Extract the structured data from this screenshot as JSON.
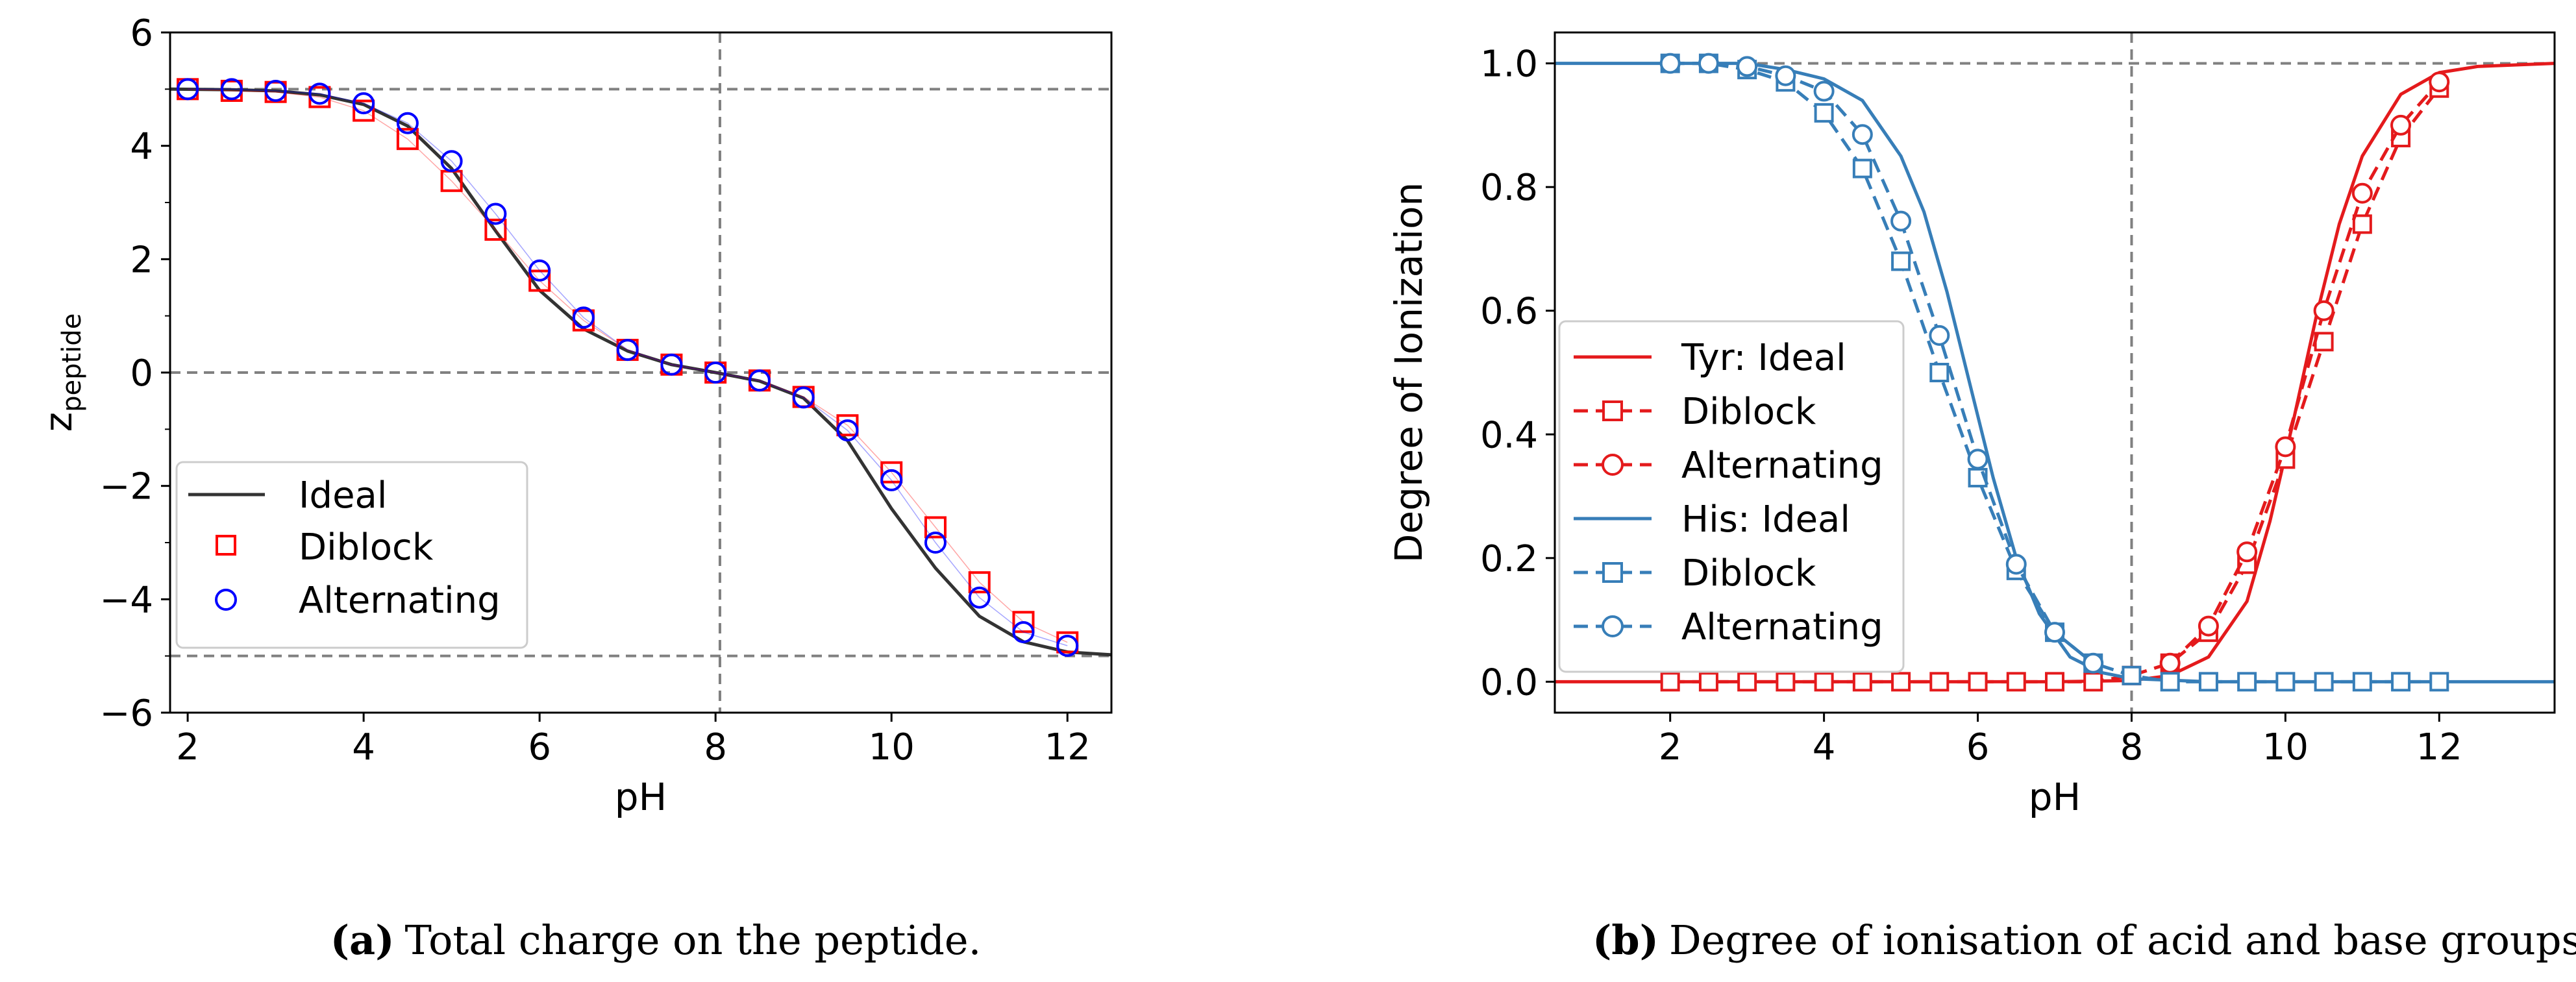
{
  "chart_data": [
    {
      "type": "line",
      "id": "a",
      "xlabel": "pH",
      "ylabel_main": "z",
      "ylabel_sub": "peptide",
      "xlim": [
        1.8,
        12.5
      ],
      "ylim": [
        -6,
        6
      ],
      "xticks": [
        2,
        4,
        6,
        8,
        10,
        12
      ],
      "yticks": [
        -6,
        -4,
        -2,
        0,
        2,
        4,
        6
      ],
      "xtick_labels": [
        "2",
        "4",
        "6",
        "8",
        "10",
        "12"
      ],
      "ytick_labels": [
        "−6",
        "−4",
        "−2",
        "0",
        "2",
        "4",
        "6"
      ],
      "reference_lines": {
        "vertical_x": 8.05,
        "horizontal_y": [
          5,
          0,
          -5
        ]
      },
      "legend": [
        "Ideal",
        "Diblock",
        "Alternating"
      ],
      "series": [
        {
          "name": "Ideal",
          "style": "line",
          "color": "#333333",
          "x": [
            1.8,
            2.5,
            3,
            3.5,
            4,
            4.5,
            5,
            5.5,
            6,
            6.5,
            7,
            7.5,
            8,
            8.5,
            9,
            9.5,
            10,
            10.5,
            11,
            11.5,
            12,
            12.5
          ],
          "y": [
            5.0,
            4.99,
            4.97,
            4.9,
            4.73,
            4.35,
            3.6,
            2.5,
            1.45,
            0.77,
            0.38,
            0.14,
            0.0,
            -0.15,
            -0.45,
            -1.2,
            -2.4,
            -3.45,
            -4.3,
            -4.75,
            -4.93,
            -4.98
          ]
        },
        {
          "name": "Diblock",
          "style": "square",
          "color": "#ff0000",
          "x": [
            2,
            2.5,
            3,
            3.5,
            4,
            4.5,
            5,
            5.5,
            6,
            6.5,
            7,
            7.5,
            8,
            8.5,
            9,
            9.5,
            10,
            10.5,
            11,
            11.5,
            12
          ],
          "y": [
            5.0,
            4.97,
            4.95,
            4.86,
            4.62,
            4.12,
            3.38,
            2.52,
            1.62,
            0.92,
            0.4,
            0.14,
            0.0,
            -0.14,
            -0.43,
            -0.93,
            -1.76,
            -2.73,
            -3.7,
            -4.4,
            -4.76
          ]
        },
        {
          "name": "Alternating",
          "style": "circle",
          "color": "#0000ff",
          "x": [
            2,
            2.5,
            3,
            3.5,
            4,
            4.5,
            5,
            5.5,
            6,
            6.5,
            7,
            7.5,
            8,
            8.5,
            9,
            9.5,
            10,
            10.5,
            11,
            11.5,
            12
          ],
          "y": [
            5.0,
            5.0,
            4.97,
            4.92,
            4.75,
            4.4,
            3.73,
            2.8,
            1.8,
            0.97,
            0.4,
            0.14,
            0.0,
            -0.14,
            -0.44,
            -1.02,
            -1.9,
            -3.0,
            -3.97,
            -4.58,
            -4.82
          ]
        }
      ]
    },
    {
      "type": "line",
      "id": "b",
      "xlabel": "pH",
      "ylabel": "Degree of Ionization",
      "xlim": [
        0.5,
        13.5
      ],
      "ylim": [
        -0.05,
        1.05
      ],
      "xticks": [
        2,
        4,
        6,
        8,
        10,
        12
      ],
      "yticks": [
        0.0,
        0.2,
        0.4,
        0.6,
        0.8,
        1.0
      ],
      "xtick_labels": [
        "2",
        "4",
        "6",
        "8",
        "10",
        "12"
      ],
      "ytick_labels": [
        "0.0",
        "0.2",
        "0.4",
        "0.6",
        "0.8",
        "1.0"
      ],
      "reference_lines": {
        "vertical_x": 8.0,
        "horizontal_y": [
          1.0
        ]
      },
      "legend": [
        "Tyr: Ideal",
        "Diblock",
        "Alternating",
        "His: Ideal",
        "Diblock",
        "Alternating"
      ],
      "series": [
        {
          "name": "Tyr: Ideal",
          "style": "line",
          "color": "#e41a1c",
          "x": [
            0.5,
            7,
            8,
            8.5,
            9,
            9.5,
            9.8,
            10.1,
            10.4,
            10.7,
            11,
            11.5,
            12,
            12.5,
            13.5
          ],
          "y": [
            0.0,
            0.0,
            0.002,
            0.01,
            0.04,
            0.13,
            0.26,
            0.42,
            0.59,
            0.74,
            0.85,
            0.95,
            0.985,
            0.995,
            1.0
          ]
        },
        {
          "name": "Diblock",
          "style": "dashed-square",
          "color": "#e41a1c",
          "x": [
            2,
            2.5,
            3,
            3.5,
            4,
            4.5,
            5,
            5.5,
            6,
            6.5,
            7,
            7.5,
            8,
            8.5,
            9,
            9.5,
            10,
            10.5,
            11,
            11.5,
            12
          ],
          "y": [
            0,
            0,
            0,
            0,
            0,
            0,
            0,
            0,
            0,
            0,
            0,
            0.0,
            0.01,
            0.03,
            0.08,
            0.19,
            0.36,
            0.55,
            0.74,
            0.88,
            0.96
          ]
        },
        {
          "name": "Alternating",
          "style": "dashed-circle",
          "color": "#e41a1c",
          "x": [
            8.5,
            9,
            9.5,
            10,
            10.5,
            11,
            11.5,
            12
          ],
          "y": [
            0.03,
            0.09,
            0.21,
            0.38,
            0.6,
            0.79,
            0.9,
            0.97
          ]
        },
        {
          "name": "His: Ideal",
          "style": "line",
          "color": "#377eb8",
          "x": [
            0.5,
            3,
            3.5,
            4,
            4.5,
            5,
            5.3,
            5.6,
            5.9,
            6.2,
            6.5,
            6.8,
            7.2,
            7.6,
            8,
            9,
            13.5
          ],
          "y": [
            1.0,
            1.0,
            0.99,
            0.975,
            0.94,
            0.85,
            0.76,
            0.63,
            0.48,
            0.33,
            0.2,
            0.11,
            0.04,
            0.015,
            0.005,
            0.0,
            0.0
          ]
        },
        {
          "name": "Diblock",
          "style": "dashed-square",
          "color": "#377eb8",
          "x": [
            2,
            2.5,
            3,
            3.5,
            4,
            4.5,
            5,
            5.5,
            6,
            6.5,
            7,
            7.5,
            8,
            8.5,
            9,
            9.5,
            10,
            10.5,
            11,
            11.5,
            12
          ],
          "y": [
            1.0,
            1.0,
            0.99,
            0.97,
            0.92,
            0.83,
            0.68,
            0.5,
            0.33,
            0.18,
            0.08,
            0.03,
            0.01,
            0,
            0,
            0,
            0,
            0,
            0,
            0,
            0
          ]
        },
        {
          "name": "Alternating",
          "style": "dashed-circle",
          "color": "#377eb8",
          "x": [
            2,
            2.5,
            3,
            3.5,
            4,
            4.5,
            5,
            5.5,
            6,
            6.5,
            7,
            7.5
          ],
          "y": [
            1.0,
            1.0,
            0.995,
            0.98,
            0.955,
            0.885,
            0.745,
            0.56,
            0.36,
            0.19,
            0.08,
            0.03
          ]
        }
      ]
    }
  ],
  "captions": [
    {
      "label": "(a)",
      "text": "Total charge on the peptide."
    },
    {
      "label": "(b)",
      "text": "Degree of ionisation of acid and base groups."
    }
  ],
  "colors": {
    "grid_ref": "#808080",
    "axis": "#000000"
  }
}
